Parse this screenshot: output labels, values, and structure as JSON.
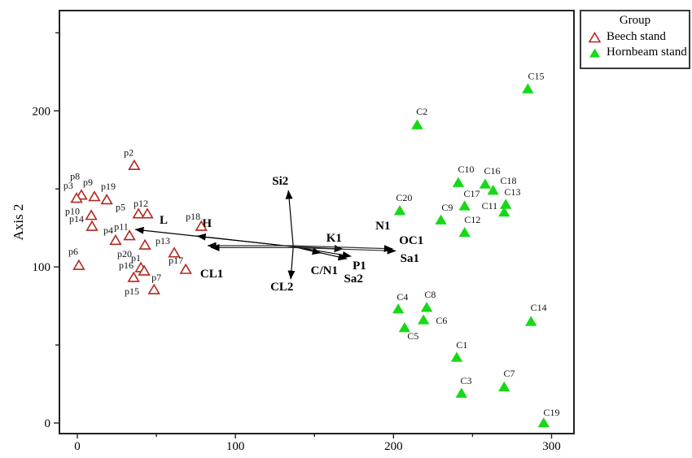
{
  "figure": {
    "background": "#ffffff",
    "frame_color": "#222222"
  },
  "legend": {
    "title": "Group",
    "items": [
      {
        "label": "Beech stand",
        "marker": "open-triangle",
        "color": "#b2281e"
      },
      {
        "label": "Hornbeam stand",
        "marker": "filled-triangle",
        "color": "#17d917"
      }
    ]
  },
  "chart_data": {
    "type": "scatter",
    "title": "",
    "xlabel": "",
    "ylabel": "Axis 2",
    "xlim": [
      -12,
      314
    ],
    "ylim": [
      -7,
      271
    ],
    "grid": false,
    "legend_position": "outside-top-right",
    "x_ticks": [
      {
        "v": 0,
        "label": "0"
      },
      {
        "v": 50,
        "label": ""
      },
      {
        "v": 100,
        "label": "100"
      },
      {
        "v": 150,
        "label": ""
      },
      {
        "v": 200,
        "label": "200"
      },
      {
        "v": 250,
        "label": ""
      },
      {
        "v": 300,
        "label": "300"
      }
    ],
    "y_ticks": [
      {
        "v": 0,
        "label": "0"
      },
      {
        "v": 50,
        "label": ""
      },
      {
        "v": 100,
        "label": "100"
      },
      {
        "v": 150,
        "label": ""
      },
      {
        "v": 200,
        "label": "200"
      },
      {
        "v": 250,
        "label": ""
      }
    ],
    "series": [
      {
        "name": "Beech stand",
        "marker": "open-triangle",
        "color": "#b2281e",
        "points": [
          {
            "label": "p2",
            "x": 36.0,
            "y": 165.0,
            "lx": 32.5,
            "ly": 173.4
          },
          {
            "label": "p8",
            "x": 2.6,
            "y": 146.0,
            "lx": -1.5,
            "ly": 158.3
          },
          {
            "label": "p3",
            "x": -0.5,
            "y": 144.0,
            "lx": -5.7,
            "ly": 152.1
          },
          {
            "label": "p9",
            "x": 10.8,
            "y": 145.0,
            "lx": 6.7,
            "ly": 154.2
          },
          {
            "label": "p19",
            "x": 18.6,
            "y": 143.0,
            "lx": 19.6,
            "ly": 151.6
          },
          {
            "label": "p10",
            "x": 8.8,
            "y": 133.0,
            "lx": -3.1,
            "ly": 135.9
          },
          {
            "label": "p14",
            "x": 9.3,
            "y": 126.0,
            "lx": -0.5,
            "ly": 130.7
          },
          {
            "label": "p5",
            "x": 38.7,
            "y": 134.0,
            "lx": 27.3,
            "ly": 138.5
          },
          {
            "label": "p12",
            "x": 44.3,
            "y": 134.0,
            "lx": 40.2,
            "ly": 140.6
          },
          {
            "label": "p18",
            "x": 78.4,
            "y": 126.0,
            "lx": 73.2,
            "ly": 132.3
          },
          {
            "label": "p4",
            "x": 24.2,
            "y": 117.0,
            "lx": 19.6,
            "ly": 123.4
          },
          {
            "label": "p11",
            "x": 33.0,
            "y": 120.0,
            "lx": 27.8,
            "ly": 126.0
          },
          {
            "label": "p13",
            "x": 42.8,
            "y": 114.0,
            "lx": 54.1,
            "ly": 116.7
          },
          {
            "label": "p6",
            "x": 1.0,
            "y": 101.0,
            "lx": -2.6,
            "ly": 109.9
          },
          {
            "label": "p17",
            "x": 61.3,
            "y": 109.0,
            "lx": 62.4,
            "ly": 104.2
          },
          {
            "label": "p20",
            "x": 40.2,
            "y": 99.5,
            "lx": 29.9,
            "ly": 108.3
          },
          {
            "label": "p1",
            "x": 42.3,
            "y": 97.4,
            "lx": 37.1,
            "ly": 105.7
          },
          {
            "label": "p16",
            "x": 68.6,
            "y": 98.4,
            "lx": 30.9,
            "ly": 101.0
          },
          {
            "label": "p15",
            "x": 35.6,
            "y": 93.2,
            "lx": 34.5,
            "ly": 84.4
          },
          {
            "label": "p7",
            "x": 48.5,
            "y": 85.4,
            "lx": 50.0,
            "ly": 93.2
          }
        ]
      },
      {
        "name": "Hornbeam stand",
        "marker": "filled-triangle",
        "color": "#17d917",
        "points": [
          {
            "label": "C15",
            "x": 285.0,
            "y": 214.0,
            "lx": 290.2,
            "ly": 222.4
          },
          {
            "label": "C2",
            "x": 215.0,
            "y": 191.0,
            "lx": 218.0,
            "ly": 199.5
          },
          {
            "label": "C10",
            "x": 241.0,
            "y": 154.0,
            "lx": 245.9,
            "ly": 162.5
          },
          {
            "label": "C16",
            "x": 258.0,
            "y": 153.0,
            "lx": 262.4,
            "ly": 161.5
          },
          {
            "label": "C18",
            "x": 263.0,
            "y": 149.0,
            "lx": 272.7,
            "ly": 155.2
          },
          {
            "label": "C17",
            "x": 245.0,
            "y": 139.0,
            "lx": 249.5,
            "ly": 146.9
          },
          {
            "label": "C13",
            "x": 271.0,
            "y": 140.0,
            "lx": 275.3,
            "ly": 147.9
          },
          {
            "label": "C11",
            "x": 270.0,
            "y": 135.0,
            "lx": 260.8,
            "ly": 139.1
          },
          {
            "label": "C9",
            "x": 230.0,
            "y": 130.0,
            "lx": 234.0,
            "ly": 138.0
          },
          {
            "label": "C12",
            "x": 245.0,
            "y": 122.0,
            "lx": 250.0,
            "ly": 130.2
          },
          {
            "label": "C20",
            "x": 204.0,
            "y": 136.0,
            "lx": 206.7,
            "ly": 144.3
          },
          {
            "label": "C4",
            "x": 203.0,
            "y": 73.0,
            "lx": 205.7,
            "ly": 80.7
          },
          {
            "label": "C8",
            "x": 221.0,
            "y": 74.0,
            "lx": 223.2,
            "ly": 82.3
          },
          {
            "label": "C6",
            "x": 219.0,
            "y": 66.0,
            "lx": 230.4,
            "ly": 65.6
          },
          {
            "label": "C5",
            "x": 207.0,
            "y": 61.0,
            "lx": 212.4,
            "ly": 55.7
          },
          {
            "label": "C14",
            "x": 287.0,
            "y": 65.0,
            "lx": 291.8,
            "ly": 74.0
          },
          {
            "label": "C1",
            "x": 240.0,
            "y": 42.0,
            "lx": 243.3,
            "ly": 50.0
          },
          {
            "label": "C3",
            "x": 243.0,
            "y": 19.0,
            "lx": 245.9,
            "ly": 27.1
          },
          {
            "label": "C7",
            "x": 270.0,
            "y": 23.0,
            "lx": 273.2,
            "ly": 31.8
          },
          {
            "label": "C19",
            "x": 295.0,
            "y": 0.0,
            "lx": 300.0,
            "ly": 6.8
          }
        ]
      }
    ],
    "vectors": {
      "origin": {
        "x": 136.6,
        "y": 113.0
      },
      "arrows": [
        {
          "name": "Si2",
          "x": 133.5,
          "y": 149.0,
          "style": "single"
        },
        {
          "name": "CL2",
          "x": 135.0,
          "y": 92.2,
          "style": "single"
        },
        {
          "name": "L",
          "x": 36.6,
          "y": 124.0,
          "style": "single"
        },
        {
          "name": "H",
          "x": 75.8,
          "y": 119.8,
          "style": "single"
        },
        {
          "name": "CL1",
          "x": 82.5,
          "y": 113.0,
          "style": "double"
        },
        {
          "name": "K1",
          "x": 168.0,
          "y": 111.5,
          "style": "single"
        },
        {
          "name": "C/N1",
          "x": 154.1,
          "y": 108.9,
          "style": "single"
        },
        {
          "name": "P1",
          "x": 173.2,
          "y": 106.8,
          "style": "single"
        },
        {
          "name": "Sa2",
          "x": 170.5,
          "y": 105.2,
          "style": "single"
        },
        {
          "name": "N1-OC1-Sa1",
          "x": 201.5,
          "y": 110.9,
          "style": "double"
        }
      ],
      "labels": [
        {
          "text": "Si2",
          "x": 128.4,
          "y": 155.2
        },
        {
          "text": "CL2",
          "x": 129.4,
          "y": 87.5
        },
        {
          "text": "L",
          "x": 54.6,
          "y": 130.2
        },
        {
          "text": "H",
          "x": 82.0,
          "y": 128.1
        },
        {
          "text": "CL1",
          "x": 85.0,
          "y": 95.8
        },
        {
          "text": "K1",
          "x": 162.4,
          "y": 118.8
        },
        {
          "text": "C/N1",
          "x": 156.2,
          "y": 97.9
        },
        {
          "text": "P1",
          "x": 178.4,
          "y": 101.0
        },
        {
          "text": "Sa2",
          "x": 174.7,
          "y": 92.7
        },
        {
          "text": "N1",
          "x": 193.3,
          "y": 126.6
        },
        {
          "text": "OC1",
          "x": 211.3,
          "y": 117.2
        },
        {
          "text": "Sa1",
          "x": 210.3,
          "y": 105.7
        }
      ]
    }
  }
}
